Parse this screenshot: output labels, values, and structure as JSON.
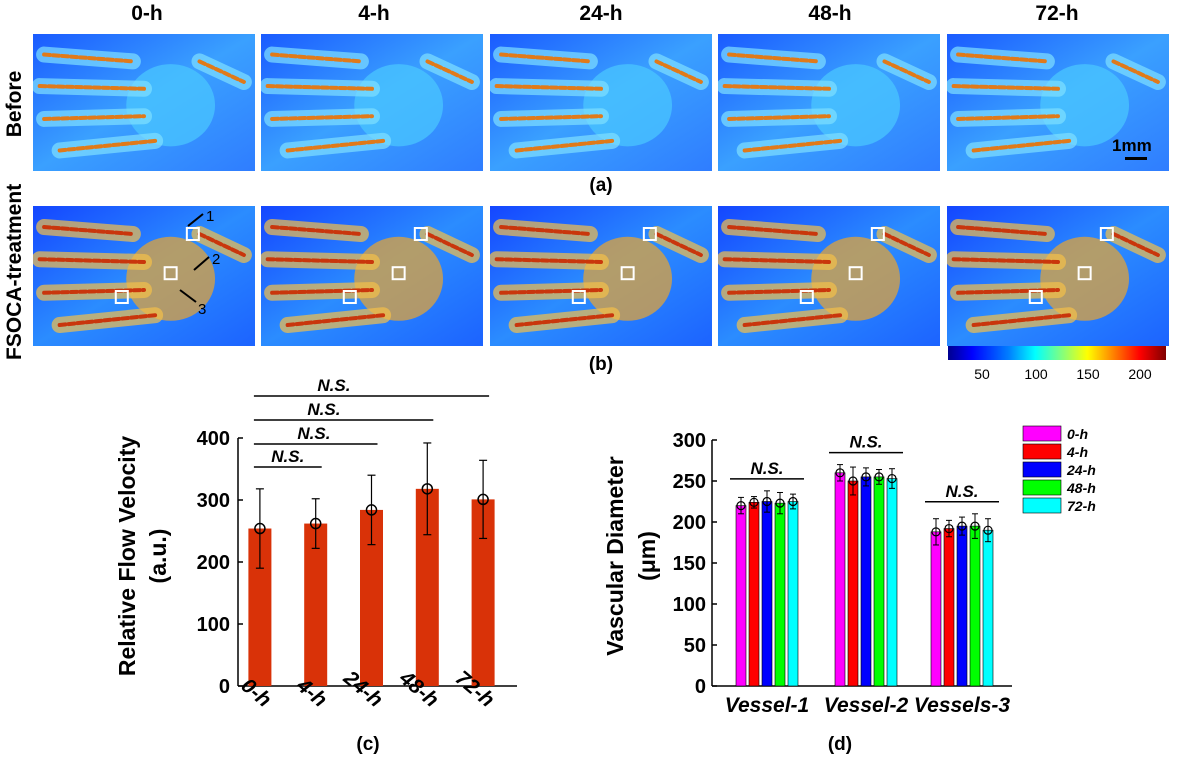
{
  "time_labels": [
    "0-h",
    "4-h",
    "24-h",
    "48-h",
    "72-h"
  ],
  "row_labels": {
    "before": "Before",
    "treatment": "FSOCA-treatment"
  },
  "panel_labels": {
    "a": "(a)",
    "b": "(b)",
    "c": "(c)",
    "d": "(d)"
  },
  "scale_bar": "1mm",
  "arrow_labels": [
    "1",
    "2",
    "3"
  ],
  "colorbar": {
    "ticks": [
      "50",
      "100",
      "150",
      "200"
    ],
    "colors": [
      "#00008f",
      "#0000ff",
      "#0080ff",
      "#00ffff",
      "#80ff80",
      "#ffff00",
      "#ff8000",
      "#ff0000",
      "#800000"
    ]
  },
  "chart_data": [
    {
      "type": "bar",
      "categories": [
        "0-h",
        "4-h",
        "24-h",
        "48-h",
        "72-h"
      ],
      "values": [
        254,
        262,
        284,
        318,
        301
      ],
      "errors": [
        64,
        40,
        56,
        74,
        63
      ],
      "ylabel_line1": "Relative Flow Velocity",
      "ylabel_line2": "(a.u.)",
      "ylim": [
        0,
        400
      ],
      "yticks": [
        "0",
        "100",
        "200",
        "300",
        "400"
      ],
      "bar_color": "#d93208",
      "significance": [
        {
          "from": 0,
          "to": 1,
          "label": "N.S."
        },
        {
          "from": 0,
          "to": 2,
          "label": "N.S."
        },
        {
          "from": 0,
          "to": 3,
          "label": "N.S."
        },
        {
          "from": 0,
          "to": 4,
          "label": "N.S."
        }
      ]
    },
    {
      "type": "bar",
      "categories": [
        "Vessel-1",
        "Vessel-2",
        "Vessels-3"
      ],
      "series": [
        {
          "name": "0-h",
          "color": "#ff00ff",
          "values": [
            220,
            260,
            188
          ],
          "errors": [
            10,
            10,
            16
          ]
        },
        {
          "name": "4-h",
          "color": "#ff0000",
          "values": [
            224,
            250,
            192
          ],
          "errors": [
            7,
            17,
            10
          ]
        },
        {
          "name": "24-h",
          "color": "#0000ff",
          "values": [
            225,
            255,
            195
          ],
          "errors": [
            13,
            11,
            11
          ]
        },
        {
          "name": "48-h",
          "color": "#00ff00",
          "values": [
            223,
            255,
            195
          ],
          "errors": [
            13,
            9,
            15
          ]
        },
        {
          "name": "72-h",
          "color": "#00ffff",
          "values": [
            225,
            253,
            190
          ],
          "errors": [
            9,
            12,
            14
          ]
        }
      ],
      "ylabel_line1": "Vascular Diameter",
      "ylabel_line2": "(μm)",
      "ylim": [
        0,
        300
      ],
      "yticks": [
        "0",
        "50",
        "100",
        "150",
        "200",
        "250",
        "300"
      ],
      "significance_label": "N.S."
    }
  ]
}
